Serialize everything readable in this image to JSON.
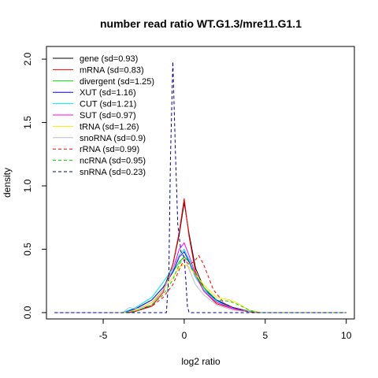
{
  "chart_data": {
    "type": "line",
    "title": "number read ratio WT.G1.3/mre11.G1.1",
    "xlabel": "log2 ratio",
    "ylabel": "density",
    "xlim": [
      -8.5,
      10.5
    ],
    "ylim": [
      -0.05,
      2.1
    ],
    "x_ticks": [
      -5,
      0,
      5,
      10
    ],
    "x_tick_labels": [
      "-5",
      "0",
      "5",
      "10"
    ],
    "y_ticks": [
      0.0,
      0.5,
      1.0,
      1.5,
      2.0
    ],
    "y_tick_labels": [
      "0.0",
      "0.5",
      "1.0",
      "1.5",
      "2.0"
    ],
    "grid": false,
    "legend_position": "top-left",
    "series": [
      {
        "name": "gene (sd=0.93)",
        "color": "#000000",
        "dash": "solid",
        "points": [
          [
            -8,
            0
          ],
          [
            -3.6,
            0
          ],
          [
            -3,
            0.01
          ],
          [
            -2,
            0.06
          ],
          [
            -1.3,
            0.18
          ],
          [
            -0.7,
            0.38
          ],
          [
            -0.3,
            0.62
          ],
          [
            0,
            0.87
          ],
          [
            0.3,
            0.62
          ],
          [
            0.7,
            0.35
          ],
          [
            1.2,
            0.2
          ],
          [
            2,
            0.09
          ],
          [
            3,
            0.04
          ],
          [
            4,
            0.01
          ],
          [
            4.6,
            0
          ],
          [
            10,
            0
          ]
        ]
      },
      {
        "name": "mRNA (sd=0.83)",
        "color": "#ff0000",
        "dash": "solid",
        "points": [
          [
            -8,
            0
          ],
          [
            -3.4,
            0
          ],
          [
            -3,
            0.01
          ],
          [
            -2,
            0.05
          ],
          [
            -1.3,
            0.16
          ],
          [
            -0.7,
            0.38
          ],
          [
            -0.3,
            0.64
          ],
          [
            0,
            0.9
          ],
          [
            0.3,
            0.6
          ],
          [
            0.7,
            0.32
          ],
          [
            1.2,
            0.17
          ],
          [
            2,
            0.07
          ],
          [
            3,
            0.03
          ],
          [
            4,
            0.005
          ],
          [
            4.5,
            0
          ],
          [
            10,
            0
          ]
        ]
      },
      {
        "name": "divergent (sd=1.25)",
        "color": "#00cd00",
        "dash": "solid",
        "points": [
          [
            -8,
            0
          ],
          [
            -3.8,
            0
          ],
          [
            -3,
            0.03
          ],
          [
            -2,
            0.1
          ],
          [
            -1.3,
            0.2
          ],
          [
            -0.7,
            0.32
          ],
          [
            -0.3,
            0.4
          ],
          [
            0,
            0.44
          ],
          [
            0.3,
            0.4
          ],
          [
            0.7,
            0.3
          ],
          [
            1.2,
            0.2
          ],
          [
            2,
            0.1
          ],
          [
            3,
            0.04
          ],
          [
            4,
            0.01
          ],
          [
            4.8,
            0
          ],
          [
            10,
            0
          ]
        ]
      },
      {
        "name": "XUT (sd=1.16)",
        "color": "#0000ff",
        "dash": "solid",
        "points": [
          [
            -8,
            0
          ],
          [
            -3.8,
            0
          ],
          [
            -3,
            0.03
          ],
          [
            -2,
            0.1
          ],
          [
            -1.3,
            0.2
          ],
          [
            -0.7,
            0.32
          ],
          [
            -0.3,
            0.44
          ],
          [
            0,
            0.48
          ],
          [
            0.3,
            0.4
          ],
          [
            0.7,
            0.28
          ],
          [
            1.2,
            0.18
          ],
          [
            2,
            0.1
          ],
          [
            3,
            0.04
          ],
          [
            4,
            0.01
          ],
          [
            4.8,
            0
          ],
          [
            10,
            0
          ]
        ]
      },
      {
        "name": "CUT (sd=1.21)",
        "color": "#00e5ee",
        "dash": "solid",
        "points": [
          [
            -8,
            0
          ],
          [
            -3.8,
            0
          ],
          [
            -3,
            0.04
          ],
          [
            -2,
            0.12
          ],
          [
            -1.3,
            0.24
          ],
          [
            -0.7,
            0.35
          ],
          [
            -0.3,
            0.45
          ],
          [
            0,
            0.5
          ],
          [
            0.3,
            0.42
          ],
          [
            0.7,
            0.28
          ],
          [
            1.2,
            0.18
          ],
          [
            2,
            0.09
          ],
          [
            3,
            0.03
          ],
          [
            4,
            0.01
          ],
          [
            4.8,
            0
          ],
          [
            10,
            0
          ]
        ]
      },
      {
        "name": "SUT (sd=0.97)",
        "color": "#ff00ff",
        "dash": "solid",
        "points": [
          [
            -8,
            0
          ],
          [
            -3.6,
            0
          ],
          [
            -3,
            0.02
          ],
          [
            -2,
            0.08
          ],
          [
            -1.3,
            0.18
          ],
          [
            -0.7,
            0.34
          ],
          [
            -0.3,
            0.5
          ],
          [
            0,
            0.55
          ],
          [
            0.3,
            0.45
          ],
          [
            0.7,
            0.3
          ],
          [
            1.2,
            0.17
          ],
          [
            2,
            0.08
          ],
          [
            3,
            0.03
          ],
          [
            4,
            0.005
          ],
          [
            4.6,
            0
          ],
          [
            10,
            0
          ]
        ]
      },
      {
        "name": "tRNA (sd=1.26)",
        "color": "#ffe600",
        "dash": "solid",
        "points": [
          [
            -8,
            0
          ],
          [
            -3.6,
            0
          ],
          [
            -3,
            0.02
          ],
          [
            -2,
            0.08
          ],
          [
            -1.3,
            0.18
          ],
          [
            -0.7,
            0.28
          ],
          [
            -0.3,
            0.36
          ],
          [
            0,
            0.38
          ],
          [
            0.3,
            0.36
          ],
          [
            0.7,
            0.3
          ],
          [
            1.2,
            0.22
          ],
          [
            2,
            0.12
          ],
          [
            2.8,
            0.1
          ],
          [
            3.2,
            0.08
          ],
          [
            4,
            0.02
          ],
          [
            4.8,
            0
          ],
          [
            10,
            0
          ]
        ]
      },
      {
        "name": "snoRNA (sd=0.9)",
        "color": "#bebebe",
        "dash": "solid",
        "points": [
          [
            -8,
            0
          ],
          [
            -3.8,
            0
          ],
          [
            -3.4,
            0.04
          ],
          [
            -3,
            0.03
          ],
          [
            -2,
            0.06
          ],
          [
            -1.3,
            0.18
          ],
          [
            -0.7,
            0.34
          ],
          [
            -0.3,
            0.46
          ],
          [
            0,
            0.44
          ],
          [
            0.3,
            0.34
          ],
          [
            0.7,
            0.22
          ],
          [
            1.2,
            0.14
          ],
          [
            2,
            0.06
          ],
          [
            3,
            0.02
          ],
          [
            4,
            0.005
          ],
          [
            4.6,
            0
          ],
          [
            10,
            0
          ]
        ]
      },
      {
        "name": "rRNA (sd=0.99)",
        "color": "#ff0000",
        "dash": "dashed",
        "points": [
          [
            -8,
            0
          ],
          [
            -3.4,
            0
          ],
          [
            -3,
            0.01
          ],
          [
            -2,
            0.05
          ],
          [
            -1.3,
            0.12
          ],
          [
            -0.7,
            0.22
          ],
          [
            -0.3,
            0.34
          ],
          [
            0,
            0.42
          ],
          [
            0.3,
            0.38
          ],
          [
            0.6,
            0.4
          ],
          [
            0.9,
            0.45
          ],
          [
            1.2,
            0.38
          ],
          [
            1.8,
            0.18
          ],
          [
            2.5,
            0.07
          ],
          [
            3.2,
            0.03
          ],
          [
            4,
            0.005
          ],
          [
            4.6,
            0
          ],
          [
            10,
            0
          ]
        ]
      },
      {
        "name": "ncRNA (sd=0.95)",
        "color": "#00cd00",
        "dash": "dashed",
        "points": [
          [
            -8,
            0
          ],
          [
            -3.6,
            0
          ],
          [
            -3,
            0.01
          ],
          [
            -2,
            0.06
          ],
          [
            -1.3,
            0.14
          ],
          [
            -0.7,
            0.26
          ],
          [
            -0.3,
            0.38
          ],
          [
            0,
            0.44
          ],
          [
            0.3,
            0.4
          ],
          [
            0.7,
            0.3
          ],
          [
            1.2,
            0.2
          ],
          [
            2,
            0.1
          ],
          [
            2.8,
            0.09
          ],
          [
            3.2,
            0.07
          ],
          [
            4,
            0.02
          ],
          [
            4.6,
            0
          ],
          [
            10,
            0
          ]
        ]
      },
      {
        "name": "snRNA (sd=0.23)",
        "color": "#00008b",
        "dash": "dashed",
        "points": [
          [
            -8,
            0
          ],
          [
            -1.1,
            0
          ],
          [
            -0.95,
            0.3
          ],
          [
            -0.85,
            1.2
          ],
          [
            -0.7,
            1.98
          ],
          [
            -0.55,
            1.3
          ],
          [
            -0.4,
            0.7
          ],
          [
            -0.2,
            0.48
          ],
          [
            0,
            0.44
          ],
          [
            0.1,
            0.25
          ],
          [
            0.2,
            0.05
          ],
          [
            0.3,
            0
          ],
          [
            10,
            0
          ]
        ]
      }
    ]
  }
}
